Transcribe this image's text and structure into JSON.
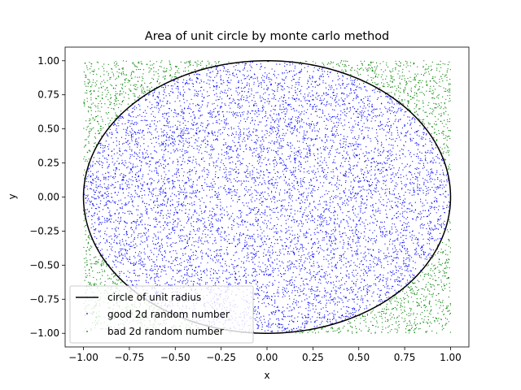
{
  "chart_data": {
    "type": "scatter",
    "title": "Area of unit circle by monte carlo method",
    "xlabel": "x",
    "ylabel": "y",
    "xlim": [
      -1.1,
      1.1
    ],
    "ylim": [
      -1.1,
      1.1
    ],
    "xticks": [
      -1.0,
      -0.75,
      -0.5,
      -0.25,
      0.0,
      0.25,
      0.5,
      0.75,
      1.0
    ],
    "yticks": [
      -1.0,
      -0.75,
      -0.5,
      -0.25,
      0.0,
      0.25,
      0.5,
      0.75,
      1.0
    ],
    "xtick_labels": [
      "−1.00",
      "−0.75",
      "−0.50",
      "−0.25",
      "0.00",
      "0.25",
      "0.50",
      "0.75",
      "1.00"
    ],
    "ytick_labels": [
      "−1.00",
      "−0.75",
      "−0.50",
      "−0.25",
      "0.00",
      "0.25",
      "0.50",
      "0.75",
      "1.00"
    ],
    "grid": false,
    "legend_position": "lower-left",
    "series": [
      {
        "name": "circle of unit radius",
        "kind": "line",
        "color": "#000000",
        "equation": "x^2 + y^2 = 1"
      },
      {
        "name": "good 2d random number",
        "kind": "scatter",
        "color": "#0000ff",
        "region": "x^2 + y^2 <= 1",
        "x_range": [
          -1.0,
          1.0
        ],
        "y_range": [
          -1.0,
          1.0
        ],
        "approx_count": 7850
      },
      {
        "name": "bad 2d random number",
        "kind": "scatter",
        "color": "#008000",
        "region": "x^2 + y^2 > 1",
        "x_range": [
          -1.0,
          1.0
        ],
        "y_range": [
          -1.0,
          1.0
        ],
        "approx_count": 2150
      }
    ]
  }
}
